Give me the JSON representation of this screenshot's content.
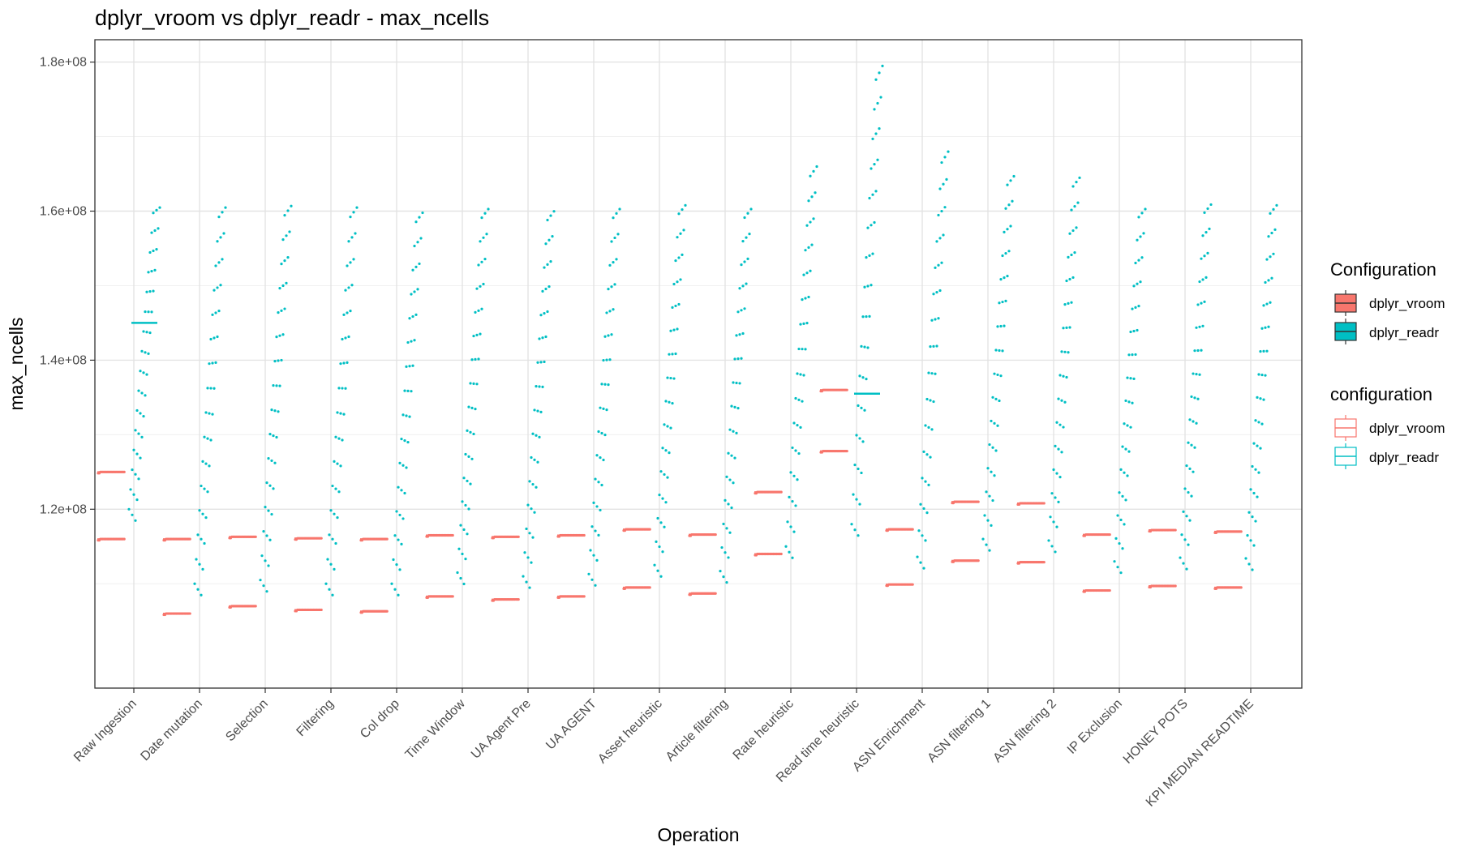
{
  "chart_data": {
    "type": "scatter",
    "title": "dplyr_vroom vs dplyr_readr - max_ncells",
    "xlabel": "Operation",
    "ylabel": "max_ncells",
    "ylim": [
      96000000,
      183000000
    ],
    "y_ticks": [
      120000000,
      140000000,
      160000000,
      180000000
    ],
    "y_tick_labels": [
      "1.2e+08",
      "1.4e+08",
      "1.6e+08",
      "1.8e+08"
    ],
    "grid": true,
    "legend_position": "right",
    "categories": [
      "Raw Ingestion",
      "Date mutation",
      "Selection",
      "Filtering",
      "Col drop",
      "Time Window",
      "UA Agent Pre",
      "UA AGENT",
      "Asset heuristic",
      "Article filtering",
      "Rate heuristic",
      "Read time heuristic",
      "ASN Enrichment",
      "ASN filtering 1",
      "ASN filtering 2",
      "IP Exclusion",
      "HONEY POTS",
      "KPI MEDIAN READTIME"
    ],
    "series": [
      {
        "name": "dplyr_vroom",
        "color": "#F8766D",
        "levels": [
          [
            116000000,
            125000000
          ],
          [
            106000000,
            116000000
          ],
          [
            107000000,
            116300000
          ],
          [
            106500000,
            116100000
          ],
          [
            106300000,
            116000000
          ],
          [
            108300000,
            116500000
          ],
          [
            107900000,
            116300000
          ],
          [
            108300000,
            116500000
          ],
          [
            109500000,
            117300000
          ],
          [
            108700000,
            116600000
          ],
          [
            114000000,
            122300000
          ],
          [
            127800000,
            136000000
          ],
          [
            109900000,
            117300000
          ],
          [
            113100000,
            121000000
          ],
          [
            112900000,
            120800000
          ],
          [
            109100000,
            116600000
          ],
          [
            109700000,
            117200000
          ],
          [
            109500000,
            117000000
          ]
        ]
      },
      {
        "name": "dplyr_readr",
        "color": "#00BFC4",
        "min": [
          120000000,
          110000000,
          110500000,
          110000000,
          110000000,
          111500000,
          111000000,
          111300000,
          112500000,
          111700000,
          115000000,
          118000000,
          113600000,
          116000000,
          115800000,
          113000000,
          113500000,
          113400000
        ],
        "max": [
          162000000,
          162000000,
          162200000,
          162000000,
          161300000,
          161800000,
          161500000,
          161800000,
          162300000,
          161800000,
          167500000,
          181000000,
          169500000,
          166200000,
          166000000,
          161800000,
          162400000,
          162300000
        ],
        "median": [
          145000000,
          null,
          null,
          null,
          null,
          null,
          null,
          null,
          null,
          null,
          null,
          135500000,
          null,
          null,
          null,
          null,
          null,
          null
        ]
      }
    ]
  },
  "legend": {
    "fill": {
      "title": "Configuration",
      "items": [
        {
          "label": "dplyr_vroom",
          "color": "#F8766D"
        },
        {
          "label": "dplyr_readr",
          "color": "#00BFC4"
        }
      ]
    },
    "colour": {
      "title": "configuration",
      "items": [
        {
          "label": "dplyr_vroom",
          "color": "#F8766D"
        },
        {
          "label": "dplyr_readr",
          "color": "#00BFC4"
        }
      ]
    }
  }
}
